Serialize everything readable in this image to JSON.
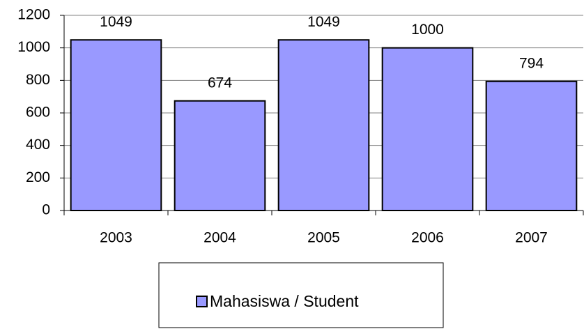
{
  "chart_data": {
    "type": "bar",
    "categories": [
      "2003",
      "2004",
      "2005",
      "2006",
      "2007"
    ],
    "series": [
      {
        "name": "Mahasiswa / Student",
        "color": "#9999ff",
        "values": [
          1049,
          674,
          1049,
          1000,
          794
        ]
      }
    ],
    "ylim": [
      0,
      1200
    ],
    "yticks": [
      0,
      200,
      400,
      600,
      800,
      1000,
      1200
    ],
    "grid": true,
    "legend": "bottom"
  }
}
